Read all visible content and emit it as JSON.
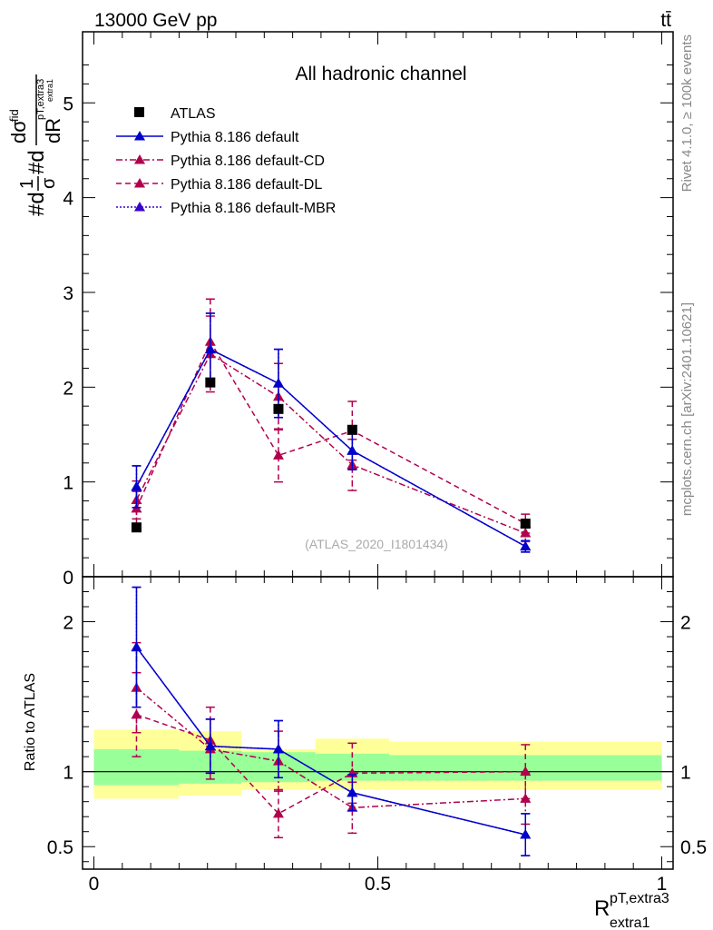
{
  "header": {
    "left": "13000 GeV pp",
    "right": "tt̄"
  },
  "side_labels": {
    "rivet": "Rivet 4.1.0, ≥ 100k events",
    "mcplots": "mcplots.cern.ch [arXiv:2401.10621]"
  },
  "chart_data": {
    "type": "scatter",
    "title": "All hadronic channel",
    "watermark": "(ATLAS_2020_I1801434)",
    "ylabel_upper": "#d1/σ#d dσfid/dR pT,extra3 extra1",
    "ylabel_lower": "Ratio to ATLAS",
    "xlabel": "R pT,extra3 / extra1",
    "xlabel_main": "R",
    "xlabel_sup": "pT,extra3",
    "xlabel_sub": "extra1",
    "ylabel_parts": {
      "num": "dσ",
      "num_sup": "fid",
      "den": "dR",
      "den_sub1": "pT,extra3",
      "den_sub2": "extra1",
      "prefix": "#d",
      "frac_num": "1",
      "frac_den": "σ",
      "mid": "#d"
    },
    "xlim": [
      -0.02,
      1.02
    ],
    "ylim_upper": [
      0,
      5.75
    ],
    "ylim_lower": [
      0.35,
      2.3
    ],
    "x_ticks": [
      "0",
      "0.5",
      "1"
    ],
    "y_ticks_upper": [
      "0",
      "1",
      "2",
      "3",
      "4",
      "5"
    ],
    "y_ticks_lower": [
      "0.5",
      "1",
      "2"
    ],
    "x": [
      0.075,
      0.205,
      0.325,
      0.455,
      0.76
    ],
    "x_edges": [
      0.0,
      0.15,
      0.26,
      0.39,
      0.52,
      1.0
    ],
    "legend": [
      "ATLAS",
      "Pythia 8.186 default",
      "Pythia 8.186 default-CD",
      "Pythia 8.186 default-DL",
      "Pythia 8.186 default-MBR"
    ],
    "reference": {
      "name": "ATLAS",
      "values": [
        0.52,
        2.05,
        1.77,
        1.55,
        0.56
      ],
      "band_outer": [
        [
          0.82,
          1.28
        ],
        [
          0.84,
          1.27
        ],
        [
          0.88,
          1.15
        ],
        [
          0.88,
          1.22
        ],
        [
          0.88,
          1.2
        ]
      ],
      "band_inner": [
        [
          0.91,
          1.15
        ],
        [
          0.92,
          1.14
        ],
        [
          0.93,
          1.13
        ],
        [
          0.94,
          1.12
        ],
        [
          0.94,
          1.11
        ]
      ],
      "band_outer_edges": [
        0.0,
        0.15,
        0.26,
        0.39,
        0.52,
        1.0
      ]
    },
    "series": [
      {
        "name": "Pythia 8.186 default",
        "color": "#0000cc",
        "dash": "solid",
        "values": [
          0.95,
          2.4,
          2.04,
          1.33,
          0.32
        ],
        "errors": [
          0.22,
          0.38,
          0.36,
          0.2,
          0.06
        ],
        "ratio": [
          1.83,
          1.17,
          1.15,
          0.86,
          0.58
        ],
        "ratio_errors": [
          0.4,
          0.18,
          0.19,
          0.12,
          0.14
        ]
      },
      {
        "name": "Pythia 8.186 default-CD",
        "color": "#b0004d",
        "dash": "dashdot",
        "values": [
          0.81,
          2.35,
          1.9,
          1.18,
          0.46
        ],
        "errors": [
          0.2,
          0.4,
          0.35,
          0.27,
          0.09
        ],
        "ratio": [
          1.56,
          1.15,
          1.07,
          0.76,
          0.82
        ],
        "ratio_errors": [
          0.3,
          0.2,
          0.2,
          0.17,
          0.17
        ]
      },
      {
        "name": "Pythia 8.186 default-DL",
        "color": "#b0004d",
        "dash": "dashed",
        "values": [
          0.72,
          2.48,
          1.28,
          1.54,
          0.56
        ],
        "errors": [
          0.18,
          0.45,
          0.28,
          0.31,
          0.1
        ],
        "ratio": [
          1.38,
          1.21,
          0.72,
          0.99,
          1.0
        ],
        "ratio_errors": [
          0.28,
          0.22,
          0.16,
          0.2,
          0.18
        ]
      },
      {
        "name": "Pythia 8.186 default-MBR",
        "color": "#3a00cc",
        "dash": "dotted",
        "values": [
          0.95,
          2.4,
          2.04,
          1.33,
          0.32
        ],
        "errors": [
          0.22,
          0.38,
          0.36,
          0.2,
          0.06
        ],
        "ratio": [
          1.83,
          1.17,
          1.15,
          0.86,
          0.58
        ],
        "ratio_errors": [
          0.4,
          0.18,
          0.19,
          0.12,
          0.14
        ]
      }
    ]
  }
}
